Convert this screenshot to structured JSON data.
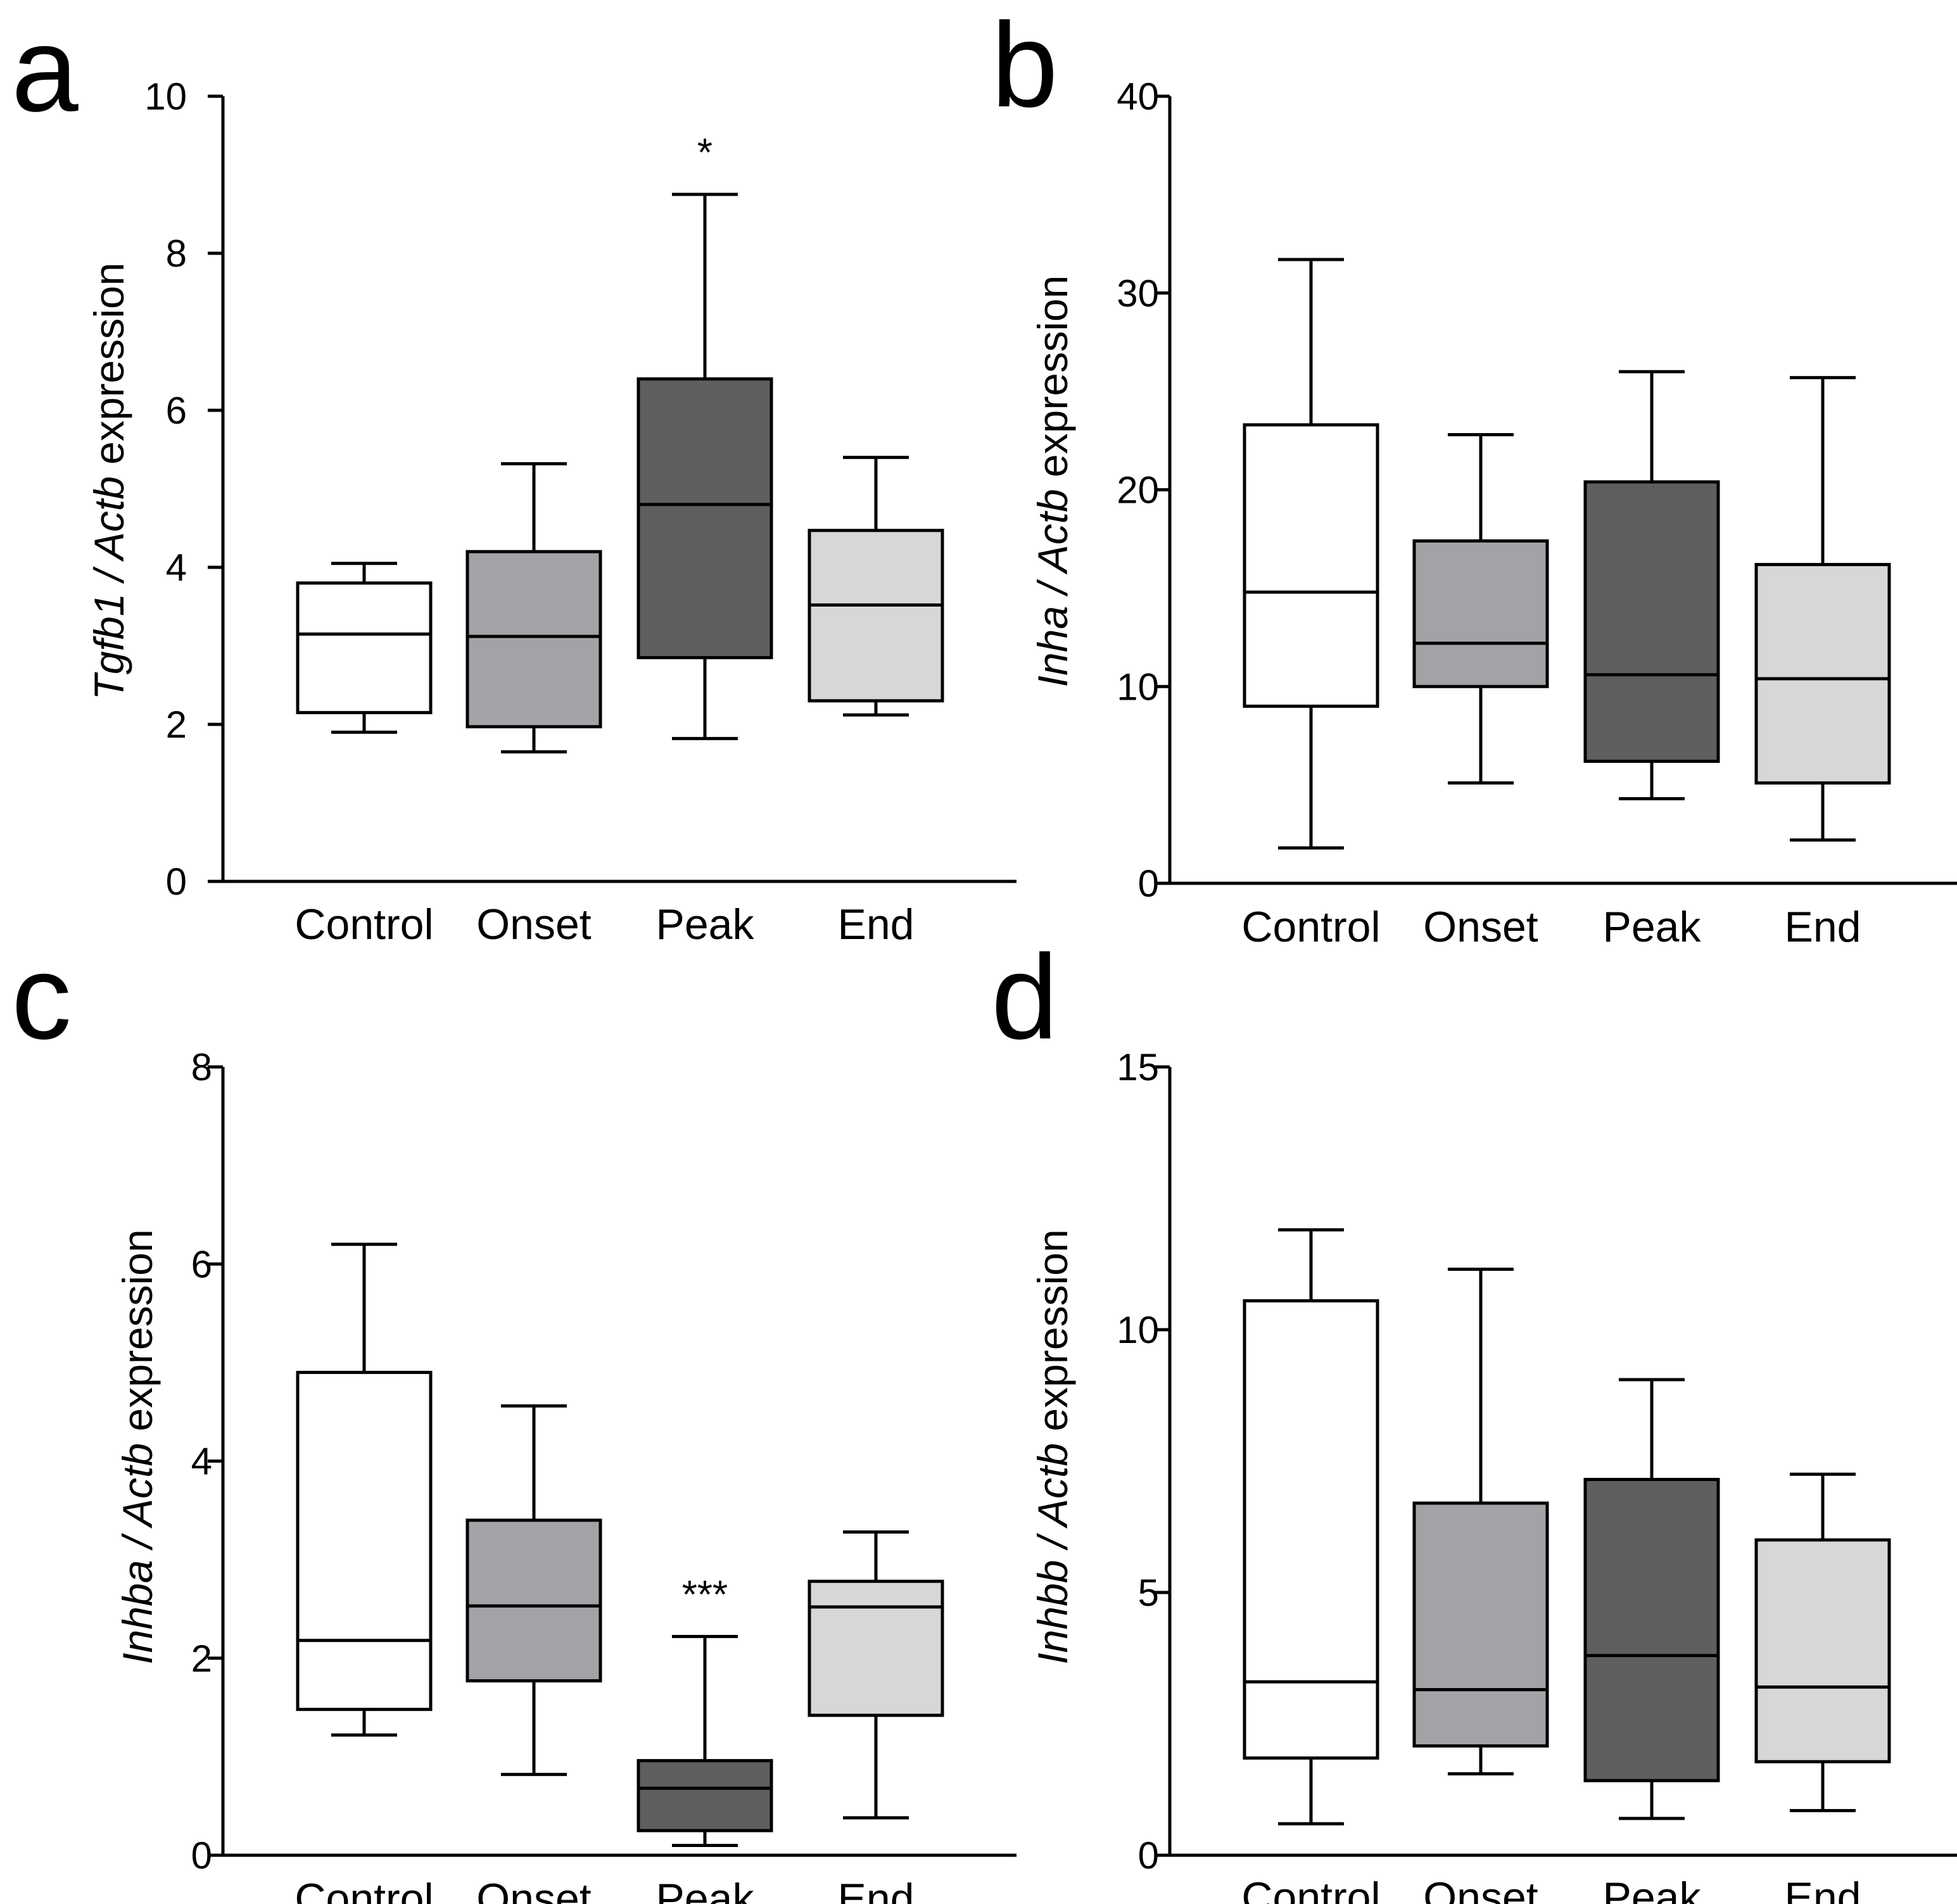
{
  "categories": [
    "Control",
    "Onset",
    "Peak",
    "End"
  ],
  "colors": {
    "Control": "#ffffff",
    "Onset": "#a2a3a6",
    "Peak": "#5f5f5f",
    "End": "#d7d7d7",
    "stroke": "#000000"
  },
  "chart_data": [
    {
      "type": "box",
      "panel": "a",
      "ylabel_italic": "Tgfb1 / Actb",
      "ylabel_rest": " expression",
      "ylim": [
        0,
        10
      ],
      "yticks": [
        0,
        2,
        4,
        6,
        8,
        10
      ],
      "boxes": [
        {
          "category": "Control",
          "min": 1.9,
          "q1": 2.15,
          "median": 3.15,
          "q3": 3.8,
          "max": 4.05
        },
        {
          "category": "Onset",
          "min": 1.65,
          "q1": 1.97,
          "median": 3.12,
          "q3": 4.2,
          "max": 5.32
        },
        {
          "category": "Peak",
          "min": 1.82,
          "q1": 2.85,
          "median": 4.8,
          "q3": 6.4,
          "max": 8.75,
          "significance": "*"
        },
        {
          "category": "End",
          "min": 2.12,
          "q1": 2.3,
          "median": 3.52,
          "q3": 4.47,
          "max": 5.4
        }
      ]
    },
    {
      "type": "box",
      "panel": "b",
      "ylabel_italic": "Inha / Actb",
      "ylabel_rest": " expression",
      "ylim": [
        0,
        40
      ],
      "yticks": [
        0,
        10,
        20,
        30,
        40
      ],
      "boxes": [
        {
          "category": "Control",
          "min": 1.8,
          "q1": 9.0,
          "median": 14.8,
          "q3": 23.3,
          "max": 31.7
        },
        {
          "category": "Onset",
          "min": 5.1,
          "q1": 10.0,
          "median": 12.2,
          "q3": 17.4,
          "max": 22.8
        },
        {
          "category": "Peak",
          "min": 4.3,
          "q1": 6.2,
          "median": 10.6,
          "q3": 20.4,
          "max": 26.0
        },
        {
          "category": "End",
          "min": 2.2,
          "q1": 5.1,
          "median": 10.4,
          "q3": 16.2,
          "max": 25.7
        }
      ]
    },
    {
      "type": "box",
      "panel": "c",
      "ylabel_italic": "Inhba / Actb",
      "ylabel_rest": " expression",
      "ylim": [
        0,
        8
      ],
      "yticks": [
        0,
        2,
        4,
        6,
        8
      ],
      "boxes": [
        {
          "category": "Control",
          "min": 1.22,
          "q1": 1.48,
          "median": 2.18,
          "q3": 4.9,
          "max": 6.2
        },
        {
          "category": "Onset",
          "min": 0.82,
          "q1": 1.77,
          "median": 2.53,
          "q3": 3.4,
          "max": 4.56
        },
        {
          "category": "Peak",
          "min": 0.1,
          "q1": 0.25,
          "median": 0.68,
          "q3": 0.96,
          "max": 2.22,
          "significance": "***"
        },
        {
          "category": "End",
          "min": 0.38,
          "q1": 1.42,
          "median": 2.52,
          "q3": 2.78,
          "max": 3.28
        }
      ]
    },
    {
      "type": "box",
      "panel": "d",
      "ylabel_italic": "Inhbb / Actb",
      "ylabel_rest": " expression",
      "ylim": [
        0,
        15
      ],
      "yticks": [
        0,
        5,
        10,
        15
      ],
      "boxes": [
        {
          "category": "Control",
          "min": 0.6,
          "q1": 1.85,
          "median": 3.3,
          "q3": 10.55,
          "max": 11.9
        },
        {
          "category": "Onset",
          "min": 1.55,
          "q1": 2.08,
          "median": 3.15,
          "q3": 6.7,
          "max": 11.15
        },
        {
          "category": "Peak",
          "min": 0.7,
          "q1": 1.42,
          "median": 3.8,
          "q3": 7.15,
          "max": 9.05
        },
        {
          "category": "End",
          "min": 0.85,
          "q1": 1.78,
          "median": 3.2,
          "q3": 6.0,
          "max": 7.25
        }
      ]
    }
  ]
}
